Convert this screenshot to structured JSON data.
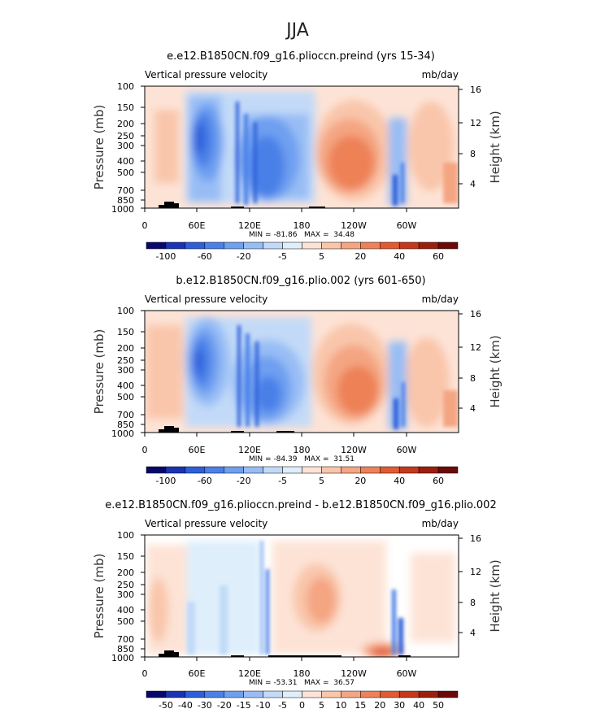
{
  "figure": {
    "season_title": "JJA"
  },
  "colorbar_colors": [
    "#08086b",
    "#1a33b3",
    "#2d5fd9",
    "#4a80e8",
    "#6e9ff0",
    "#98bdf5",
    "#c2daf8",
    "#deeefb",
    "#fde3d6",
    "#f9c6ab",
    "#f4a582",
    "#ee8157",
    "#e25a32",
    "#c4381c",
    "#9b1f0e",
    "#6b0808"
  ],
  "chart_data": [
    {
      "type": "heatmap",
      "title": "e.e12.B1850CN.f09_g16.plioccn.preind (yrs 15-34)",
      "variable_label": "Vertical pressure velocity",
      "units": "mb/day",
      "ylabel": "Pressure (mb)",
      "ylabel_right": "Height (km)",
      "pressure_ticks": [
        "100",
        "150",
        "200",
        "250",
        "300",
        "400",
        "500",
        "700",
        "850",
        "1000"
      ],
      "height_ticks": [
        "16",
        "12",
        "8",
        "4"
      ],
      "x_ticks": [
        "0",
        "60E",
        "120E",
        "180",
        "120W",
        "60W"
      ],
      "stats_text": "MIN = -81.86   MAX =  34.48",
      "colorbar_labels": [
        "-100",
        "-60",
        "-20",
        "-5",
        "5",
        "20",
        "40",
        "60"
      ],
      "stats": {
        "min": -81.86,
        "max": 34.48
      }
    },
    {
      "type": "heatmap",
      "title": "b.e12.B1850CN.f09_g16.plio.002 (yrs 601-650)",
      "variable_label": "Vertical pressure velocity",
      "units": "mb/day",
      "ylabel": "Pressure (mb)",
      "ylabel_right": "Height (km)",
      "pressure_ticks": [
        "100",
        "150",
        "200",
        "250",
        "300",
        "400",
        "500",
        "700",
        "850",
        "1000"
      ],
      "height_ticks": [
        "16",
        "12",
        "8",
        "4"
      ],
      "x_ticks": [
        "0",
        "60E",
        "120E",
        "180",
        "120W",
        "60W"
      ],
      "stats_text": "MIN = -84.39   MAX =  31.51",
      "colorbar_labels": [
        "-100",
        "-60",
        "-20",
        "-5",
        "5",
        "20",
        "40",
        "60"
      ],
      "stats": {
        "min": -84.39,
        "max": 31.51
      }
    },
    {
      "type": "heatmap",
      "title": "e.e12.B1850CN.f09_g16.plioccn.preind - b.e12.B1850CN.f09_g16.plio.002",
      "variable_label": "Vertical pressure velocity",
      "units": "mb/day",
      "ylabel": "Pressure (mb)",
      "ylabel_right": "Height (km)",
      "pressure_ticks": [
        "100",
        "150",
        "200",
        "250",
        "300",
        "400",
        "500",
        "700",
        "850",
        "1000"
      ],
      "height_ticks": [
        "16",
        "12",
        "8",
        "4"
      ],
      "x_ticks": [
        "0",
        "60E",
        "120E",
        "180",
        "120W",
        "60W"
      ],
      "stats_text": "MIN = -53.31   MAX =  36.57",
      "colorbar_labels": [
        "-50",
        "-40",
        "-30",
        "-20",
        "-15",
        "-10",
        "-5",
        "0",
        "5",
        "10",
        "15",
        "20",
        "30",
        "40",
        "50"
      ],
      "stats": {
        "min": -53.31,
        "max": 36.57
      }
    }
  ]
}
